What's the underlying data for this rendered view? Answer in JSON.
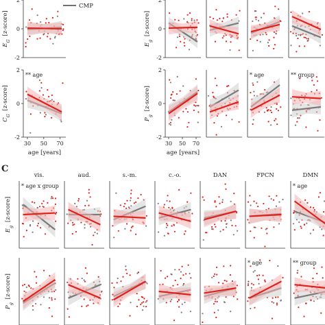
{
  "figure": {
    "panel_letter": "C",
    "legend": {
      "label": "CMP",
      "color": "#6f6f6f"
    },
    "colors": {
      "red": "#e0201b",
      "gray": "#7a7a7a",
      "red_band": "#f4b5b3",
      "gray_band": "#cfcfcf"
    }
  },
  "chart_data": [
    {
      "id": "A_top",
      "type": "scatter",
      "ylabel": "E_G [z-score]",
      "ylim": [
        -2,
        2
      ],
      "yticks": [
        "-2",
        "0",
        "2"
      ],
      "xlim": [
        25,
        77
      ],
      "panels": [
        {
          "title": "",
          "annotation": "",
          "red_fit": [
            0.05,
            0.0
          ],
          "gray_fit": [
            -0.05,
            0.1
          ]
        }
      ]
    },
    {
      "id": "A_bottom",
      "type": "scatter",
      "ylabel": "C_G [z-score]",
      "ylim": [
        -2,
        2
      ],
      "yticks": [
        "-2",
        "0",
        "2"
      ],
      "xlim": [
        25,
        77
      ],
      "xticks": [
        "30",
        "50",
        "70"
      ],
      "xlabel": "age [years]",
      "panels": [
        {
          "title": "",
          "annotation": "** age",
          "red_fit": [
            0.55,
            -0.5
          ],
          "gray_fit": [
            0.2,
            -0.6
          ]
        }
      ]
    },
    {
      "id": "B_top",
      "type": "scatter",
      "ylabel": "E_g [z-score]",
      "ylim": [
        -2,
        2
      ],
      "yticks": [
        "-2",
        "0",
        "2"
      ],
      "xlim": [
        25,
        77
      ],
      "panels": [
        {
          "title": "",
          "annotation": "",
          "red_fit": [
            0.05,
            0.1
          ],
          "gray_fit": [
            0.4,
            -0.9
          ]
        },
        {
          "title": "",
          "annotation": "",
          "red_fit": [
            0.2,
            -0.35
          ],
          "gray_fit": [
            -0.1,
            0.4
          ]
        },
        {
          "title": "",
          "annotation": "",
          "red_fit": [
            -0.2,
            0.3
          ],
          "gray_fit": [
            -0.3,
            0.5
          ]
        },
        {
          "title": "",
          "annotation": "",
          "red_fit": [
            0.85,
            -0.05
          ],
          "gray_fit": [
            0.2,
            -0.6
          ]
        }
      ]
    },
    {
      "id": "B_bottom",
      "type": "scatter",
      "ylabel": "P_g [z-score]",
      "ylim": [
        -2,
        2
      ],
      "yticks": [
        "-2",
        "0",
        "2"
      ],
      "xlim": [
        25,
        77
      ],
      "xticks": [
        "30",
        "50",
        "70"
      ],
      "xlabel": "age [years]",
      "panels": [
        {
          "title": "",
          "annotation": "",
          "red_fit": [
            -0.6,
            0.6
          ],
          "gray_fit": [
            -0.5,
            0.7
          ]
        },
        {
          "title": "",
          "annotation": "",
          "red_fit": [
            -0.5,
            0.1
          ],
          "gray_fit": [
            -0.2,
            0.8
          ]
        },
        {
          "title": "",
          "annotation": "* age",
          "red_fit": [
            -0.4,
            0.5
          ],
          "gray_fit": [
            -0.2,
            1.1
          ]
        },
        {
          "title": "",
          "annotation": "** group",
          "red_fit": [
            0.4,
            0.3
          ],
          "gray_fit": [
            -0.4,
            -0.2
          ]
        }
      ]
    },
    {
      "id": "C_top",
      "type": "scatter",
      "ylabel": "E_g [z-score]",
      "ylim": [
        -2,
        2
      ],
      "xlim": [
        25,
        77
      ],
      "panels": [
        {
          "title": "vis.",
          "annotation": "* age x group",
          "red_fit": [
            0.0,
            0.1
          ],
          "gray_fit": [
            0.6,
            -0.9
          ]
        },
        {
          "title": "aud.",
          "annotation": "",
          "red_fit": [
            0.3,
            -0.6
          ],
          "gray_fit": [
            0.0,
            0.0
          ]
        },
        {
          "title": "s.-m.",
          "annotation": "",
          "red_fit": [
            -0.1,
            -0.2
          ],
          "gray_fit": [
            -0.3,
            0.5
          ]
        },
        {
          "title": "c.-o.",
          "annotation": "",
          "red_fit": [
            0.1,
            -0.4
          ],
          "gray_fit": [
            -0.2,
            0.3
          ]
        },
        {
          "title": "DAN",
          "annotation": "",
          "red_fit": [
            -0.3,
            0.2
          ],
          "gray_fit": [
            -0.2,
            0.2
          ]
        },
        {
          "title": "FPCN",
          "annotation": "",
          "red_fit": [
            -0.1,
            0.0
          ],
          "gray_fit": [
            -0.1,
            0.05
          ]
        },
        {
          "title": "DMN",
          "annotation": "* age",
          "red_fit": [
            0.8,
            -0.6
          ],
          "gray_fit": [
            0.2,
            -0.5
          ]
        }
      ]
    },
    {
      "id": "C_bottom",
      "type": "scatter",
      "ylabel": "P_g [z-score]",
      "ylim": [
        -2,
        2
      ],
      "xlim": [
        25,
        77
      ],
      "panels": [
        {
          "title": "",
          "annotation": "",
          "red_fit": [
            -0.6,
            0.7
          ],
          "gray_fit": [
            -0.7,
            0.5
          ]
        },
        {
          "title": "",
          "annotation": "",
          "red_fit": [
            0.4,
            -0.4
          ],
          "gray_fit": [
            -0.4,
            0.4
          ]
        },
        {
          "title": "",
          "annotation": "",
          "red_fit": [
            -0.5,
            0.6
          ],
          "gray_fit": [
            -0.3,
            0.6
          ]
        },
        {
          "title": "",
          "annotation": "",
          "red_fit": [
            0.0,
            -0.2
          ],
          "gray_fit": [
            -0.3,
            0.1
          ]
        },
        {
          "title": "",
          "annotation": "",
          "red_fit": [
            -0.1,
            0.2
          ],
          "gray_fit": [
            -0.3,
            0.2
          ]
        },
        {
          "title": "",
          "annotation": "* age",
          "red_fit": [
            -0.4,
            0.6
          ],
          "gray_fit": [
            -0.4,
            0.2
          ]
        },
        {
          "title": "",
          "annotation": "** group",
          "red_fit": [
            0.4,
            0.2
          ],
          "gray_fit": [
            -0.4,
            0.0
          ]
        }
      ]
    }
  ]
}
